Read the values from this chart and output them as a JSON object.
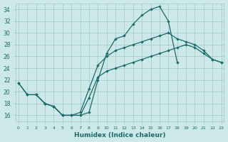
{
  "xlabel": "Humidex (Indice chaleur)",
  "background_color": "#cce8e8",
  "grid_color": "#aacccc",
  "line_color": "#1a6b6b",
  "line1_x": [
    0,
    1,
    2,
    3,
    4,
    5,
    6,
    7,
    8,
    9,
    10,
    11,
    12,
    13,
    14,
    15,
    16,
    17,
    18
  ],
  "line1_y": [
    21.5,
    19.5,
    19.5,
    18.0,
    17.5,
    16.0,
    16.0,
    16.0,
    16.5,
    22.0,
    26.5,
    29.0,
    29.5,
    31.5,
    33.0,
    34.0,
    34.5,
    32.0,
    25.0
  ],
  "line2_x": [
    2,
    3,
    4,
    5,
    6,
    7,
    8,
    9,
    10,
    11,
    12,
    13,
    14,
    15,
    16,
    17,
    18,
    19,
    20,
    21,
    22,
    23
  ],
  "line2_y": [
    19.5,
    18.0,
    17.5,
    16.0,
    16.0,
    16.5,
    20.5,
    24.5,
    26.0,
    27.0,
    27.5,
    28.0,
    28.5,
    29.0,
    29.5,
    30.0,
    29.0,
    28.5,
    28.0,
    27.0,
    25.5,
    25.0
  ],
  "line3_x": [
    0,
    1,
    2,
    3,
    4,
    5,
    6,
    7,
    8,
    9,
    10,
    11,
    12,
    13,
    14,
    15,
    16,
    17,
    18,
    19,
    20,
    21,
    22,
    23
  ],
  "line3_y": [
    21.5,
    19.5,
    19.5,
    18.0,
    17.5,
    16.0,
    16.0,
    16.0,
    19.0,
    22.5,
    23.5,
    24.0,
    24.5,
    25.0,
    25.5,
    26.0,
    26.5,
    27.0,
    27.5,
    28.0,
    27.5,
    26.5,
    25.5,
    25.0
  ],
  "xlim": [
    -0.3,
    23.3
  ],
  "ylim": [
    15.0,
    35.0
  ],
  "yticks": [
    16,
    18,
    20,
    22,
    24,
    26,
    28,
    30,
    32,
    34
  ],
  "xticks": [
    0,
    1,
    2,
    3,
    4,
    5,
    6,
    7,
    8,
    9,
    10,
    11,
    12,
    13,
    14,
    15,
    16,
    17,
    18,
    19,
    20,
    21,
    22,
    23
  ]
}
